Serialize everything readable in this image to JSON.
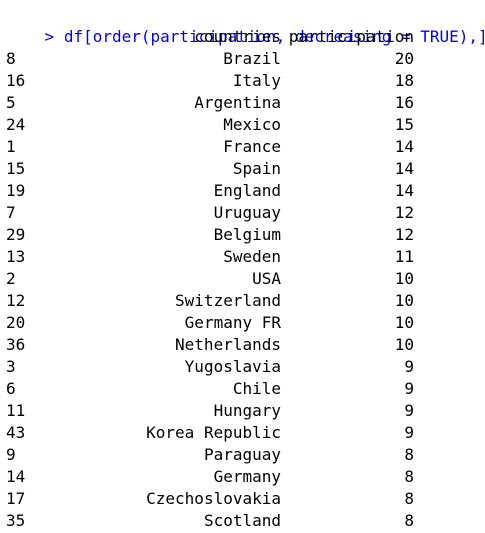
{
  "console": {
    "prompt": ">",
    "command": "df[order(participation, decreasing = TRUE),]",
    "colors": {
      "command": "#0000ff",
      "output": "#000000"
    }
  },
  "table": {
    "headers": [
      "countries",
      "participation"
    ],
    "rows": [
      {
        "index": "8",
        "country": "Brazil",
        "participation": "20"
      },
      {
        "index": "16",
        "country": "Italy",
        "participation": "18"
      },
      {
        "index": "5",
        "country": "Argentina",
        "participation": "16"
      },
      {
        "index": "24",
        "country": "Mexico",
        "participation": "15"
      },
      {
        "index": "1",
        "country": "France",
        "participation": "14"
      },
      {
        "index": "15",
        "country": "Spain",
        "participation": "14"
      },
      {
        "index": "19",
        "country": "England",
        "participation": "14"
      },
      {
        "index": "7",
        "country": "Uruguay",
        "participation": "12"
      },
      {
        "index": "29",
        "country": "Belgium",
        "participation": "12"
      },
      {
        "index": "13",
        "country": "Sweden",
        "participation": "11"
      },
      {
        "index": "2",
        "country": "USA",
        "participation": "10"
      },
      {
        "index": "12",
        "country": "Switzerland",
        "participation": "10"
      },
      {
        "index": "20",
        "country": "Germany FR",
        "participation": "10"
      },
      {
        "index": "36",
        "country": "Netherlands",
        "participation": "10"
      },
      {
        "index": "3",
        "country": "Yugoslavia",
        "participation": "9"
      },
      {
        "index": "6",
        "country": "Chile",
        "participation": "9"
      },
      {
        "index": "11",
        "country": "Hungary",
        "participation": "9"
      },
      {
        "index": "43",
        "country": "Korea Republic",
        "participation": "9"
      },
      {
        "index": "9",
        "country": "Paraguay",
        "participation": "8"
      },
      {
        "index": "14",
        "country": "Germany",
        "participation": "8"
      },
      {
        "index": "17",
        "country": "Czechoslovakia",
        "participation": "8"
      },
      {
        "index": "35",
        "country": "Scotland",
        "participation": "8"
      }
    ]
  }
}
